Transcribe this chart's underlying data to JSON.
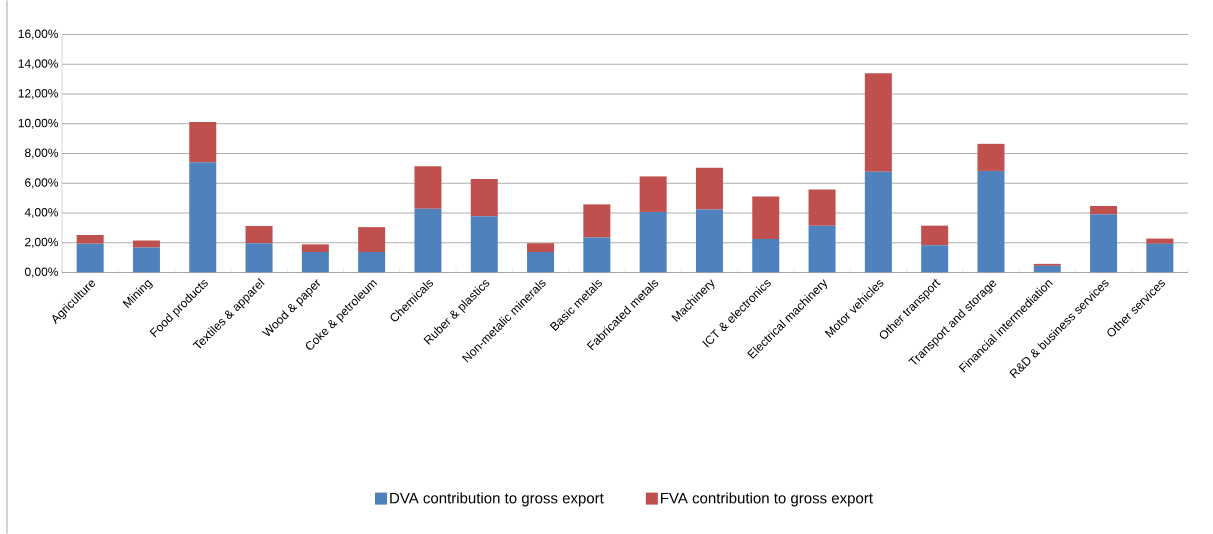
{
  "chart_data": {
    "type": "bar",
    "stacked": true,
    "grid": "y",
    "legend": "bottom",
    "categories": [
      "Agriculture",
      "Mining",
      "Food products",
      "Textiles & apparel",
      "Wood & paper",
      "Coke & petroleum",
      "Chemicals",
      "Ruber & plastics",
      "Non-metalic minerals",
      "Basic metals",
      "Fabricated metals",
      "Machinery",
      "ICT & electronics",
      "Electrical machinery",
      "Motor vehicles",
      "Other transport",
      "Transport and storage",
      "Financial intermediation",
      "R&D & business services",
      "Other services"
    ],
    "series": [
      {
        "name": "DVA contribution to gross export",
        "color": "#4f81bd",
        "values": [
          1.94,
          1.68,
          7.41,
          1.97,
          1.37,
          1.37,
          4.28,
          3.78,
          1.37,
          2.35,
          4.07,
          4.23,
          2.25,
          3.15,
          6.77,
          1.83,
          6.83,
          0.45,
          3.92,
          1.93
        ]
      },
      {
        "name": "FVA contribution to gross export",
        "color": "#c0504d",
        "values": [
          0.58,
          0.47,
          2.71,
          1.16,
          0.52,
          1.68,
          2.87,
          2.5,
          0.6,
          2.23,
          2.39,
          2.81,
          2.86,
          2.43,
          6.62,
          1.32,
          1.82,
          0.13,
          0.55,
          0.35
        ]
      }
    ],
    "ylim": [
      0,
      16
    ],
    "yticks": [
      {
        "value": 0,
        "label": "0,00%"
      },
      {
        "value": 2,
        "label": "2,00%"
      },
      {
        "value": 4,
        "label": "4,00%"
      },
      {
        "value": 6,
        "label": "6,00%"
      },
      {
        "value": 8,
        "label": "8,00%"
      },
      {
        "value": 10,
        "label": "10,00%"
      },
      {
        "value": 12,
        "label": "12,00%"
      },
      {
        "value": 14,
        "label": "14,00%"
      },
      {
        "value": 16,
        "label": "16,00%"
      }
    ]
  }
}
